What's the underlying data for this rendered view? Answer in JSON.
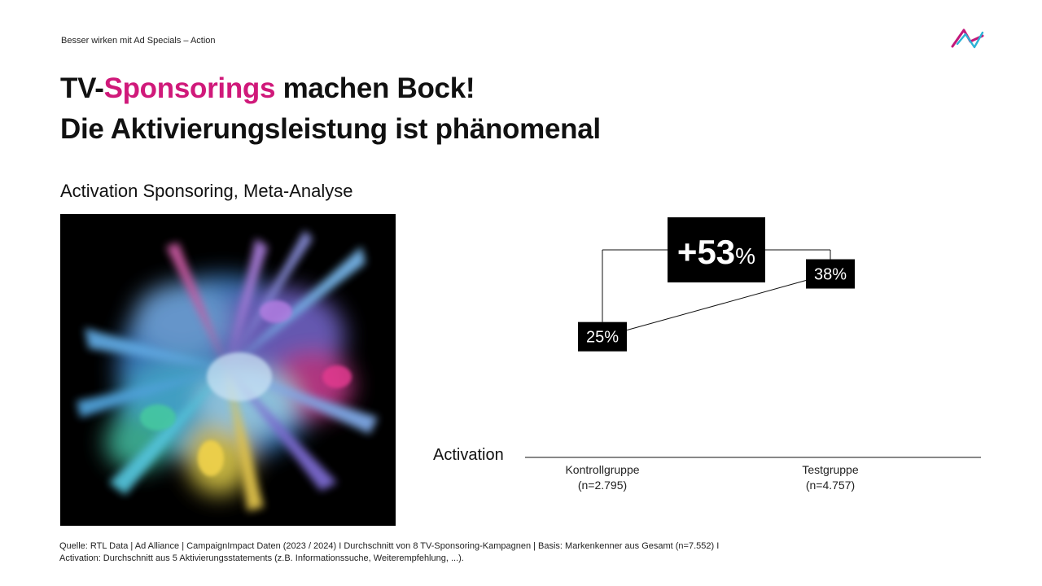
{
  "header": {
    "topline": "Besser wirken mit Ad Specials – Action",
    "title_line1_prefix": "TV-",
    "title_line1_accent": "Sponsorings",
    "title_line1_suffix": " machen Bock!",
    "title_line2": "Die Aktivierungsleistung ist phänomenal",
    "subtitle": "Activation Sponsoring, Meta-Analyse"
  },
  "colors": {
    "accent": "#d0197a",
    "logo_cyan": "#2bb3d6",
    "logo_magenta": "#c2187a",
    "box": "#000000"
  },
  "chart_data": {
    "type": "line",
    "ylabel": "Activation",
    "categories": [
      "Kontrollgruppe",
      "Testgruppe"
    ],
    "category_notes": [
      "(n=2.795)",
      "(n=4.757)"
    ],
    "values": [
      25,
      38
    ],
    "value_labels": [
      "25%",
      "38%"
    ],
    "uplift_number": "+53",
    "uplift_unit": "%",
    "ylim": [
      0,
      45
    ]
  },
  "footnote": {
    "line1": "Quelle: RTL Data | Ad Alliance | CampaignImpact Daten (2023 / 2024) I Durchschnitt von 8 TV-Sponsoring-Kampagnen | Basis: Markenkenner aus Gesamt (n=7.552) I",
    "line2": "Activation: Durchschnitt aus 5 Aktivierungsstatements (z.B. Informationssuche, Weiterempfehlung, ...)."
  }
}
